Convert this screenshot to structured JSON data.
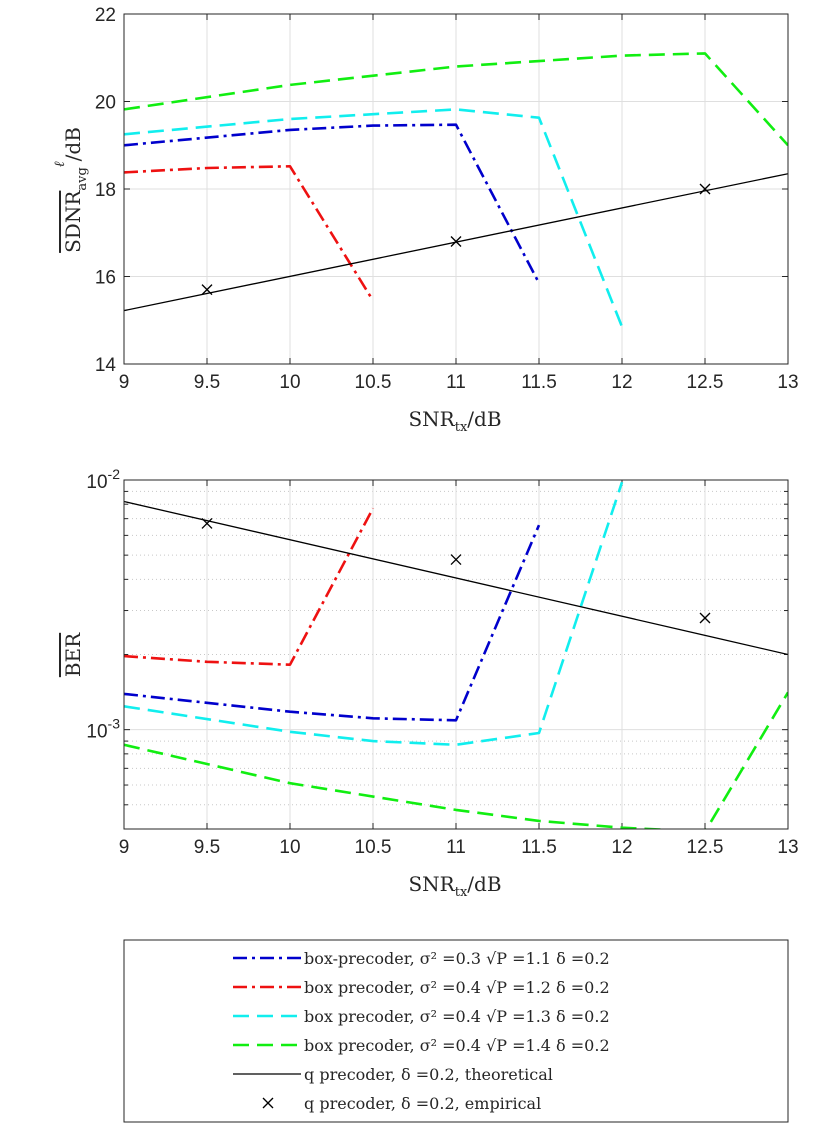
{
  "chart_data": [
    {
      "type": "line",
      "title": "",
      "xlabel": "SNR_tx/dB",
      "ylabel": "SDNR_avg^ℓ/dB",
      "yscale": "linear",
      "xlim": [
        9,
        13
      ],
      "ylim": [
        14,
        22
      ],
      "xticks": [
        9,
        9.5,
        10,
        10.5,
        11,
        11.5,
        12,
        12.5,
        13
      ],
      "xticklabels": [
        "9",
        "9.5",
        "10",
        "10.5",
        "11",
        "11.5",
        "12",
        "12.5",
        "13"
      ],
      "yticks": [
        14,
        16,
        18,
        20,
        22
      ],
      "yticklabels": [
        "14",
        "16",
        "18",
        "20",
        "22"
      ],
      "grid": true,
      "series": [
        {
          "name": "box-precoder σ²=0.3 √P=1.1",
          "color": "#0000cc",
          "dash": "dashdot",
          "x": [
            9,
            10,
            10.5,
            11,
            11.5
          ],
          "y": [
            19.0,
            19.35,
            19.45,
            19.47,
            15.85
          ]
        },
        {
          "name": "box precoder σ²=0.4 √P=1.2",
          "color": "#ee1111",
          "dash": "dashdot",
          "x": [
            9,
            9.5,
            10,
            10.5
          ],
          "y": [
            18.38,
            18.48,
            18.52,
            15.45
          ]
        },
        {
          "name": "box precoder σ²=0.4 √P=1.3",
          "color": "#11eeee",
          "dash": "dash",
          "x": [
            9,
            10,
            11,
            11.5,
            12
          ],
          "y": [
            19.25,
            19.6,
            19.82,
            19.63,
            14.85
          ]
        },
        {
          "name": "box precoder σ²=0.4 √P=1.4",
          "color": "#11ee11",
          "dash": "dash",
          "x": [
            9,
            10,
            11,
            12,
            12.5,
            13
          ],
          "y": [
            19.82,
            20.38,
            20.8,
            21.05,
            21.1,
            19.0
          ]
        },
        {
          "name": "q precoder theoretical",
          "color": "#000000",
          "dash": "solid",
          "x": [
            9,
            13
          ],
          "y": [
            15.22,
            18.35
          ]
        },
        {
          "name": "q precoder empirical",
          "color": "#000000",
          "marker": "x",
          "x": [
            9.5,
            11,
            12.5
          ],
          "y": [
            15.7,
            16.8,
            18.0
          ]
        }
      ]
    },
    {
      "type": "line",
      "title": "",
      "xlabel": "SNR_tx/dB",
      "ylabel": "BER",
      "yscale": "log",
      "xlim": [
        9,
        13
      ],
      "ylim": [
        0.0004,
        0.01
      ],
      "xticks": [
        9,
        9.5,
        10,
        10.5,
        11,
        11.5,
        12,
        12.5,
        13
      ],
      "xticklabels": [
        "9",
        "9.5",
        "10",
        "10.5",
        "11",
        "11.5",
        "12",
        "12.5",
        "13"
      ],
      "yticks": [
        0.001,
        0.01
      ],
      "yticklabels": [
        {
          "base": "10",
          "exp": "-3"
        },
        {
          "base": "10",
          "exp": "-2"
        }
      ],
      "grid": true,
      "series": [
        {
          "name": "box-precoder σ²=0.3 √P=1.1",
          "color": "#0000cc",
          "dash": "dashdot",
          "x": [
            9,
            10,
            10.5,
            11,
            11.5
          ],
          "y": [
            0.00139,
            0.00118,
            0.00111,
            0.00109,
            0.0066
          ]
        },
        {
          "name": "box precoder σ²=0.4 √P=1.2",
          "color": "#ee1111",
          "dash": "dashdot",
          "x": [
            9,
            9.5,
            10,
            10.5
          ],
          "y": [
            0.00197,
            0.00187,
            0.00182,
            0.0077
          ]
        },
        {
          "name": "box precoder σ²=0.4 √P=1.3",
          "color": "#11eeee",
          "dash": "dash",
          "x": [
            9,
            10,
            10.5,
            11,
            11.5,
            12
          ],
          "y": [
            0.00124,
            0.00098,
            0.0009,
            0.00087,
            0.00097,
            0.0098
          ]
        },
        {
          "name": "box precoder σ²=0.4 √P=1.4",
          "color": "#11ee11",
          "dash": "dash",
          "x": [
            9,
            10,
            11,
            11.5,
            12,
            12.5,
            13
          ],
          "y": [
            0.00087,
            0.00061,
            0.000477,
            0.000431,
            0.000405,
            0.00039,
            0.00141
          ]
        },
        {
          "name": "q precoder theoretical",
          "color": "#000000",
          "dash": "solid",
          "x": [
            9,
            13
          ],
          "y": [
            0.0082,
            0.002
          ]
        },
        {
          "name": "q precoder empirical",
          "color": "#000000",
          "marker": "x",
          "x": [
            9.5,
            11,
            12.5
          ],
          "y": [
            0.0067,
            0.0048,
            0.0028
          ]
        }
      ]
    }
  ],
  "legend": {
    "location": "bottom",
    "entries": [
      {
        "label": "box-precoder, σ² =0.3 √P =1.1 δ =0.2",
        "color": "#0000cc",
        "style": "dashdot"
      },
      {
        "label": "box precoder, σ² =0.4 √P =1.2 δ =0.2",
        "color": "#ee1111",
        "style": "dashdot"
      },
      {
        "label": "box precoder, σ² =0.4 √P =1.3 δ =0.2",
        "color": "#11eeee",
        "style": "dash"
      },
      {
        "label": "box precoder, σ² =0.4 √P =1.4 δ =0.2",
        "color": "#11ee11",
        "style": "dash"
      },
      {
        "label": "q precoder, δ =0.2, theoretical",
        "color": "#000000",
        "style": "solid"
      },
      {
        "label": "q precoder, δ =0.2, empirical",
        "color": "#000000",
        "style": "marker-x"
      }
    ]
  }
}
